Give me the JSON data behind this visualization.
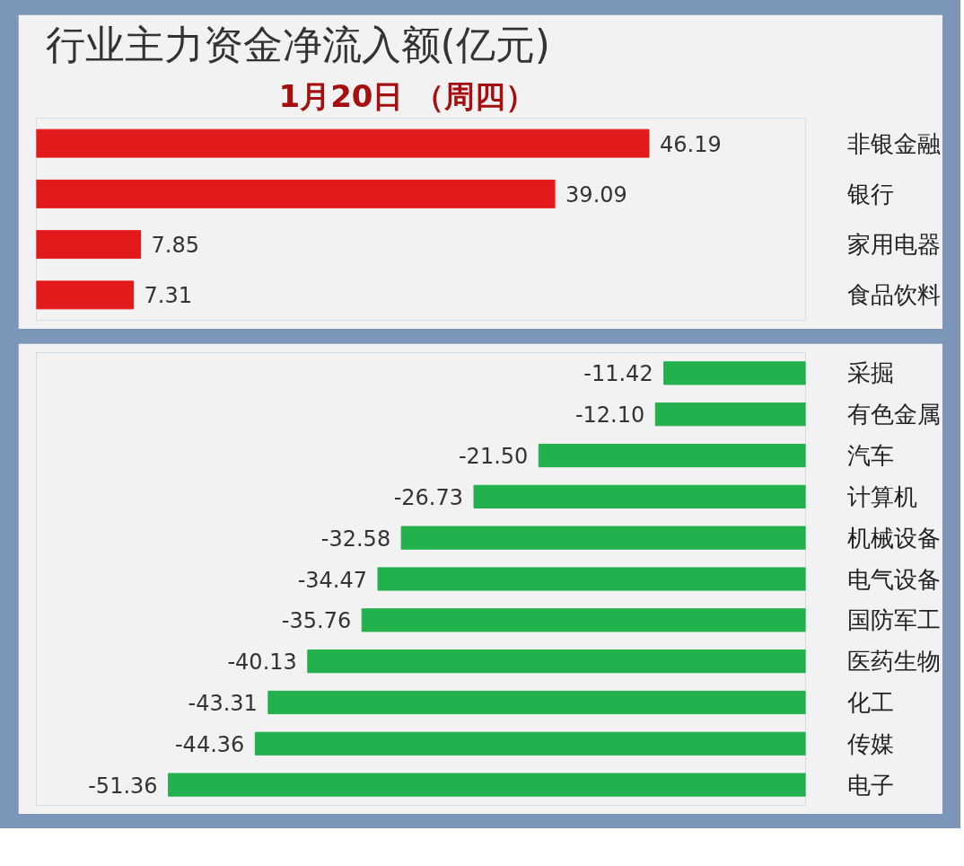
{
  "chart_data": [
    {
      "type": "bar",
      "orientation": "horizontal",
      "title": "行业主力资金净流入额(亿元)",
      "subtitle": "1月20日 （周四）",
      "categories": [
        "非银金融",
        "银行",
        "家用电器",
        "食品饮料"
      ],
      "values": [
        46.19,
        39.09,
        7.85,
        7.31
      ],
      "value_labels": [
        "46.19",
        "39.09",
        "7.85",
        "7.31"
      ],
      "color": "#e31a1c",
      "xlim": [
        0,
        58
      ],
      "tick_labels": "y",
      "grid": false
    },
    {
      "type": "bar",
      "orientation": "horizontal",
      "categories": [
        "采掘",
        "有色金属",
        "汽车",
        "计算机",
        "机械设备",
        "电气设备",
        "国防军工",
        "医药生物",
        "化工",
        "传媒",
        "电子"
      ],
      "values": [
        -11.42,
        -12.1,
        -21.5,
        -26.73,
        -32.58,
        -34.47,
        -35.76,
        -40.13,
        -43.31,
        -44.36,
        -51.36
      ],
      "value_labels": [
        "-11.42",
        "-12.10",
        "-21.50",
        "-26.73",
        "-32.58",
        "-34.47",
        "-35.76",
        "-40.13",
        "-43.31",
        "-44.36",
        "-51.36"
      ],
      "color": "#22b14c",
      "xlim": [
        -62,
        0
      ],
      "tick_labels": "y",
      "grid": false
    }
  ]
}
